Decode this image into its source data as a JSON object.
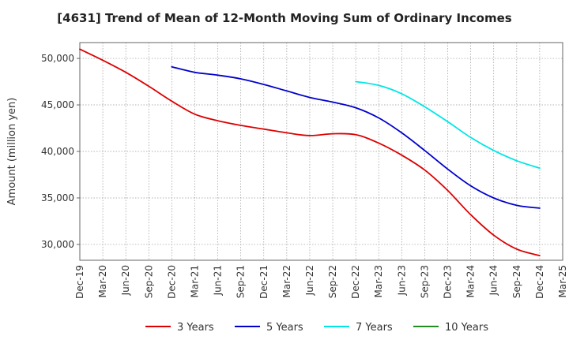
{
  "chart_data": {
    "type": "line",
    "title": "[4631]  Trend of Mean of 12-Month Moving Sum of Ordinary Incomes",
    "xlabel": "",
    "ylabel": "Amount (million yen)",
    "x": [
      "Dec-19",
      "Mar-20",
      "Jun-20",
      "Sep-20",
      "Dec-20",
      "Mar-21",
      "Jun-21",
      "Sep-21",
      "Dec-21",
      "Mar-22",
      "Jun-22",
      "Sep-22",
      "Dec-22",
      "Mar-23",
      "Jun-23",
      "Sep-23",
      "Dec-23",
      "Mar-24",
      "Jun-24",
      "Sep-24",
      "Dec-24",
      "Mar-25"
    ],
    "ylim": [
      28300,
      51700
    ],
    "yticks": [
      30000,
      35000,
      40000,
      45000,
      50000
    ],
    "ytick_labels": [
      "30,000",
      "35,000",
      "40,000",
      "45,000",
      "50,000"
    ],
    "grid": true,
    "legend_position": "bottom",
    "series": [
      {
        "name": "3 Years",
        "color": "#dd0000",
        "values": [
          51000,
          49800,
          48500,
          47000,
          45400,
          44000,
          43300,
          42800,
          42400,
          42000,
          41700,
          41900,
          41800,
          40900,
          39600,
          38000,
          35800,
          33200,
          31000,
          29500,
          28800,
          null
        ]
      },
      {
        "name": "5 Years",
        "color": "#0000cc",
        "values": [
          null,
          null,
          null,
          null,
          49100,
          48500,
          48200,
          47800,
          47200,
          46500,
          45800,
          45300,
          44700,
          43600,
          42000,
          40100,
          38100,
          36300,
          35000,
          34200,
          33900,
          null
        ]
      },
      {
        "name": "7 Years",
        "color": "#00e5e5",
        "values": [
          null,
          null,
          null,
          null,
          null,
          null,
          null,
          null,
          null,
          null,
          null,
          null,
          47500,
          47100,
          46200,
          44800,
          43200,
          41500,
          40100,
          39000,
          38200,
          null
        ]
      },
      {
        "name": "10 Years",
        "color": "#228b22",
        "values": [
          null,
          null,
          null,
          null,
          null,
          null,
          null,
          null,
          null,
          null,
          null,
          null,
          null,
          null,
          null,
          null,
          null,
          null,
          null,
          null,
          null,
          null
        ]
      }
    ]
  }
}
